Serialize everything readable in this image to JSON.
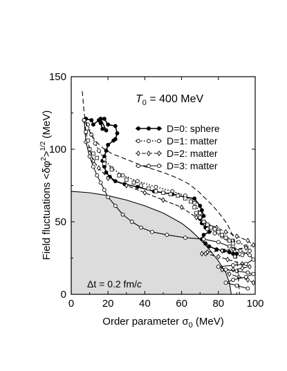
{
  "chart_data": {
    "type": "line",
    "xlabel": "Order parameter σ",
    "xlabel_sub": "0",
    "xlabel_unit": " (MeV)",
    "ylabel": "Field fluctuations <δφ",
    "ylabel_sup1": "2",
    "ylabel_mid": ">",
    "ylabel_sup2": "1/2",
    "ylabel_unit": " (MeV)",
    "xlim": [
      0,
      100
    ],
    "ylim": [
      0,
      150
    ],
    "x_ticks": [
      0,
      20,
      40,
      60,
      80,
      100
    ],
    "y_ticks": [
      0,
      50,
      100,
      150
    ],
    "grid": false,
    "legend_position": "top-right",
    "annotation_T0": {
      "var": "T",
      "sub": "0",
      "text": " = 400 MeV"
    },
    "annotation_dt": {
      "text": "Δt = 0.2 fm/",
      "var": "c"
    },
    "shaded_region": {
      "label": "",
      "points": [
        [
          0,
          71
        ],
        [
          10,
          70
        ],
        [
          20,
          68
        ],
        [
          30,
          65
        ],
        [
          40,
          61
        ],
        [
          50,
          56
        ],
        [
          60,
          49
        ],
        [
          65,
          44
        ],
        [
          70,
          38
        ],
        [
          75,
          31
        ],
        [
          80,
          23
        ],
        [
          84,
          15
        ],
        [
          86,
          8
        ],
        [
          87,
          0
        ],
        [
          0,
          0
        ]
      ]
    },
    "series": [
      {
        "name": "D=0: sphere",
        "style": "solid-filled-dots",
        "points": [
          [
            7,
            120
          ],
          [
            8,
            121
          ],
          [
            11,
            120
          ],
          [
            12,
            117
          ],
          [
            15,
            120
          ],
          [
            16,
            118
          ],
          [
            17,
            114
          ],
          [
            19,
            113
          ],
          [
            16,
            121
          ],
          [
            18,
            121
          ],
          [
            20,
            117
          ],
          [
            24,
            116
          ],
          [
            25,
            111
          ],
          [
            24,
            107
          ],
          [
            23,
            106
          ],
          [
            20,
            103
          ],
          [
            19,
            99
          ],
          [
            18,
            95
          ],
          [
            17,
            92
          ],
          [
            18,
            88
          ],
          [
            19,
            84
          ],
          [
            21,
            81
          ],
          [
            24,
            78
          ],
          [
            29,
            76
          ],
          [
            36,
            74
          ],
          [
            45,
            71
          ],
          [
            55,
            69
          ],
          [
            62,
            67
          ],
          [
            67,
            66
          ],
          [
            70,
            61
          ],
          [
            71,
            58
          ],
          [
            72,
            54
          ],
          [
            70,
            52
          ],
          [
            71,
            49
          ],
          [
            73,
            46
          ],
          [
            75,
            43
          ],
          [
            72,
            41
          ],
          [
            71,
            38
          ],
          [
            73,
            35
          ],
          [
            75,
            33
          ],
          [
            79,
            31
          ],
          [
            83,
            30
          ],
          [
            86,
            29
          ],
          [
            88,
            28
          ],
          [
            89,
            26
          ],
          [
            90,
            28
          ]
        ]
      },
      {
        "name": "D=1: matter",
        "style": "dotted-open-circles",
        "points": [
          [
            7,
            120
          ],
          [
            9,
            117
          ],
          [
            11,
            110
          ],
          [
            13,
            104
          ],
          [
            15,
            99
          ],
          [
            18,
            93
          ],
          [
            22,
            87
          ],
          [
            28,
            82
          ],
          [
            36,
            78
          ],
          [
            46,
            74
          ],
          [
            55,
            71
          ],
          [
            62,
            68
          ],
          [
            67,
            63
          ],
          [
            70,
            56
          ],
          [
            72,
            50
          ],
          [
            74,
            45
          ],
          [
            78,
            42
          ],
          [
            82,
            40
          ],
          [
            85,
            38
          ],
          [
            88,
            37
          ],
          [
            91,
            36
          ],
          [
            95,
            33
          ],
          [
            97,
            30
          ],
          [
            93,
            27
          ],
          [
            89,
            26
          ]
        ]
      },
      {
        "name": "D=2: matter",
        "style": "dashed-open-diamonds",
        "points": [
          [
            7,
            120
          ],
          [
            8,
            112
          ],
          [
            10,
            100
          ],
          [
            12,
            92
          ],
          [
            15,
            87
          ],
          [
            20,
            80
          ],
          [
            30,
            75
          ],
          [
            40,
            70
          ],
          [
            50,
            65
          ],
          [
            60,
            60
          ],
          [
            68,
            53
          ],
          [
            73,
            49
          ],
          [
            79,
            46
          ],
          [
            84,
            43
          ],
          [
            90,
            40
          ],
          [
            96,
            37
          ],
          [
            99,
            34
          ],
          [
            95,
            32
          ],
          [
            88,
            31
          ],
          [
            82,
            30
          ],
          [
            74,
            29
          ],
          [
            71,
            28
          ],
          [
            73,
            28
          ],
          [
            80,
            26
          ],
          [
            85,
            24
          ],
          [
            93,
            21
          ],
          [
            97,
            19
          ],
          [
            93,
            18
          ],
          [
            88,
            17
          ],
          [
            82,
            17
          ],
          [
            86,
            14
          ],
          [
            91,
            12
          ],
          [
            96,
            10
          ],
          [
            99,
            8
          ]
        ]
      },
      {
        "name": "D=3: matter",
        "style": "solid-open-circles",
        "points": [
          [
            7,
            120
          ],
          [
            8,
            105
          ],
          [
            10,
            95
          ],
          [
            12,
            88
          ],
          [
            14,
            82
          ],
          [
            16,
            77
          ],
          [
            18,
            72
          ],
          [
            20,
            67
          ],
          [
            24,
            61
          ],
          [
            28,
            55
          ],
          [
            33,
            50
          ],
          [
            38,
            46
          ],
          [
            44,
            43
          ],
          [
            52,
            41
          ],
          [
            62,
            39
          ],
          [
            72,
            38
          ],
          [
            80,
            36
          ],
          [
            86,
            33
          ],
          [
            92,
            30
          ],
          [
            97,
            27
          ],
          [
            99,
            24
          ],
          [
            95,
            21
          ],
          [
            88,
            20
          ],
          [
            80,
            19
          ],
          [
            84,
            17
          ],
          [
            90,
            16
          ],
          [
            96,
            15
          ],
          [
            99,
            14
          ],
          [
            95,
            12
          ],
          [
            88,
            10
          ],
          [
            84,
            8
          ],
          [
            90,
            6
          ],
          [
            96,
            4
          ]
        ]
      },
      {
        "name": "",
        "style": "dashed-no-markers",
        "points": [
          [
            6,
            140
          ],
          [
            6.5,
            133
          ],
          [
            7,
            125
          ],
          [
            8,
            118
          ],
          [
            10,
            112
          ],
          [
            13,
            106
          ],
          [
            17,
            101
          ],
          [
            22,
            97
          ],
          [
            30,
            93
          ],
          [
            40,
            88
          ],
          [
            50,
            84
          ],
          [
            58,
            80
          ],
          [
            64,
            76
          ],
          [
            69,
            71
          ],
          [
            73,
            66
          ],
          [
            77,
            61
          ],
          [
            81,
            55
          ],
          [
            85,
            48
          ],
          [
            88,
            40
          ],
          [
            89,
            32
          ],
          [
            90,
            25
          ],
          [
            90.5,
            18
          ],
          [
            91,
            8
          ],
          [
            91.5,
            0
          ]
        ]
      },
      {
        "name": "",
        "style": "open-squares",
        "points": [
          [
            8,
            112
          ],
          [
            9,
            106
          ],
          [
            10,
            100
          ],
          [
            12,
            97
          ],
          [
            14,
            94
          ],
          [
            18,
            90
          ],
          [
            22,
            86
          ],
          [
            26,
            82
          ],
          [
            30,
            79
          ],
          [
            34,
            77
          ],
          [
            38,
            75
          ],
          [
            42,
            73
          ],
          [
            46,
            71
          ],
          [
            50,
            70
          ],
          [
            54,
            69
          ],
          [
            58,
            68
          ],
          [
            62,
            66
          ],
          [
            65,
            64
          ],
          [
            67,
            60
          ],
          [
            68,
            56
          ],
          [
            70,
            53
          ],
          [
            72,
            50
          ],
          [
            74,
            48
          ],
          [
            76,
            46
          ],
          [
            78,
            45
          ],
          [
            80,
            43
          ],
          [
            82,
            41
          ],
          [
            84,
            39
          ],
          [
            86,
            37
          ],
          [
            88,
            35
          ]
        ]
      }
    ]
  }
}
